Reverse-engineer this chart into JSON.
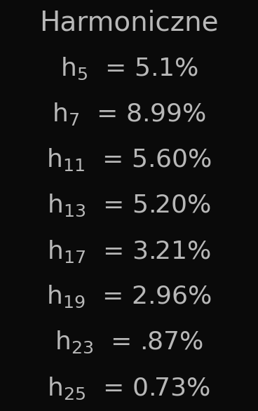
{
  "title": "Harmoniczne",
  "background_color": "#0a0a0a",
  "text_color": "#b8b8b8",
  "title_fontsize": 28,
  "row_fontsize": 26,
  "fig_width": 3.68,
  "fig_height": 5.86,
  "dpi": 100,
  "harmonics": [
    {
      "sub": "5",
      "value": "= 5.1%"
    },
    {
      "sub": "7",
      "value": "= 8.99%"
    },
    {
      "sub": "11",
      "value": "= 5.60%"
    },
    {
      "sub": "13",
      "value": "= 5.20%"
    },
    {
      "sub": "17",
      "value": "= 3.21%"
    },
    {
      "sub": "19",
      "value": "= 2.96%"
    },
    {
      "sub": "23",
      "value": "= .87%"
    },
    {
      "sub": "25",
      "value": "= 0.73%"
    }
  ]
}
